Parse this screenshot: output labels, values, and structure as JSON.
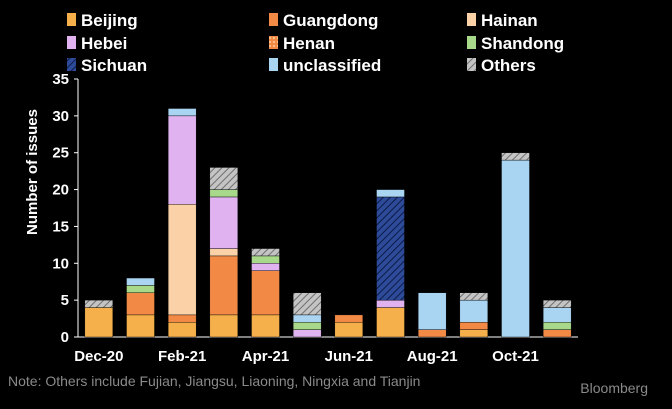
{
  "chart_data": {
    "type": "bar",
    "stacked": true,
    "xlabel": "",
    "ylabel": "Number of issues",
    "ylim": [
      0,
      35
    ],
    "yticks": [
      0,
      5,
      10,
      15,
      20,
      25,
      30,
      35
    ],
    "grid": false,
    "legend_position": "top",
    "months": [
      "Dec-20",
      "Jan-21",
      "Feb-21",
      "Mar-21",
      "Apr-21",
      "May-21",
      "Jun-21",
      "Jul-21",
      "Aug-21",
      "Sep-21",
      "Oct-21",
      "Nov-21"
    ],
    "x_tick_labels": [
      "Dec-20",
      "Feb-21",
      "Apr-21",
      "Jun-21",
      "Aug-21",
      "Oct-21"
    ],
    "series": [
      {
        "name": "Beijing",
        "color": "#f5b04c",
        "pattern": "solid",
        "values": [
          4,
          3,
          2,
          3,
          3,
          0,
          2,
          4,
          0,
          1,
          0,
          0
        ]
      },
      {
        "name": "Guangdong",
        "color": "#f28a46",
        "pattern": "solid",
        "values": [
          0,
          3,
          1,
          8,
          6,
          0,
          1,
          0,
          1,
          1,
          0,
          1
        ]
      },
      {
        "name": "Hainan",
        "color": "#fbd1a8",
        "pattern": "solid",
        "values": [
          0,
          0,
          15,
          1,
          0,
          0,
          0,
          0,
          0,
          0,
          0,
          0
        ]
      },
      {
        "name": "Hebei",
        "color": "#e0b3f0",
        "pattern": "solid",
        "values": [
          0,
          0,
          12,
          7,
          1,
          1,
          0,
          1,
          0,
          0,
          0,
          0
        ]
      },
      {
        "name": "Henan",
        "color": "#f28a46",
        "pattern": "dots",
        "values": [
          0,
          0,
          0,
          0,
          0,
          0,
          0,
          0,
          0,
          0,
          0,
          0
        ]
      },
      {
        "name": "Shandong",
        "color": "#a8d88a",
        "pattern": "solid",
        "values": [
          0,
          1,
          0,
          1,
          1,
          1,
          0,
          0,
          0,
          0,
          0,
          1
        ]
      },
      {
        "name": "Sichuan",
        "color": "#2e4b9a",
        "pattern": "hatch",
        "values": [
          0,
          0,
          0,
          0,
          0,
          0,
          0,
          14,
          0,
          0,
          0,
          0
        ]
      },
      {
        "name": "unclassified",
        "color": "#a9d4f2",
        "pattern": "solid",
        "values": [
          0,
          1,
          1,
          0,
          0,
          1,
          0,
          1,
          5,
          3,
          24,
          2
        ]
      },
      {
        "name": "Others",
        "color": "#c4c4c4",
        "pattern": "hatch",
        "values": [
          1,
          0,
          0,
          3,
          1,
          3,
          0,
          0,
          0,
          1,
          1,
          1
        ]
      }
    ]
  },
  "footnote": "Note: Others include Fujian, Jiangsu, Liaoning, Ningxia and Tianjin",
  "source": "Bloomberg"
}
